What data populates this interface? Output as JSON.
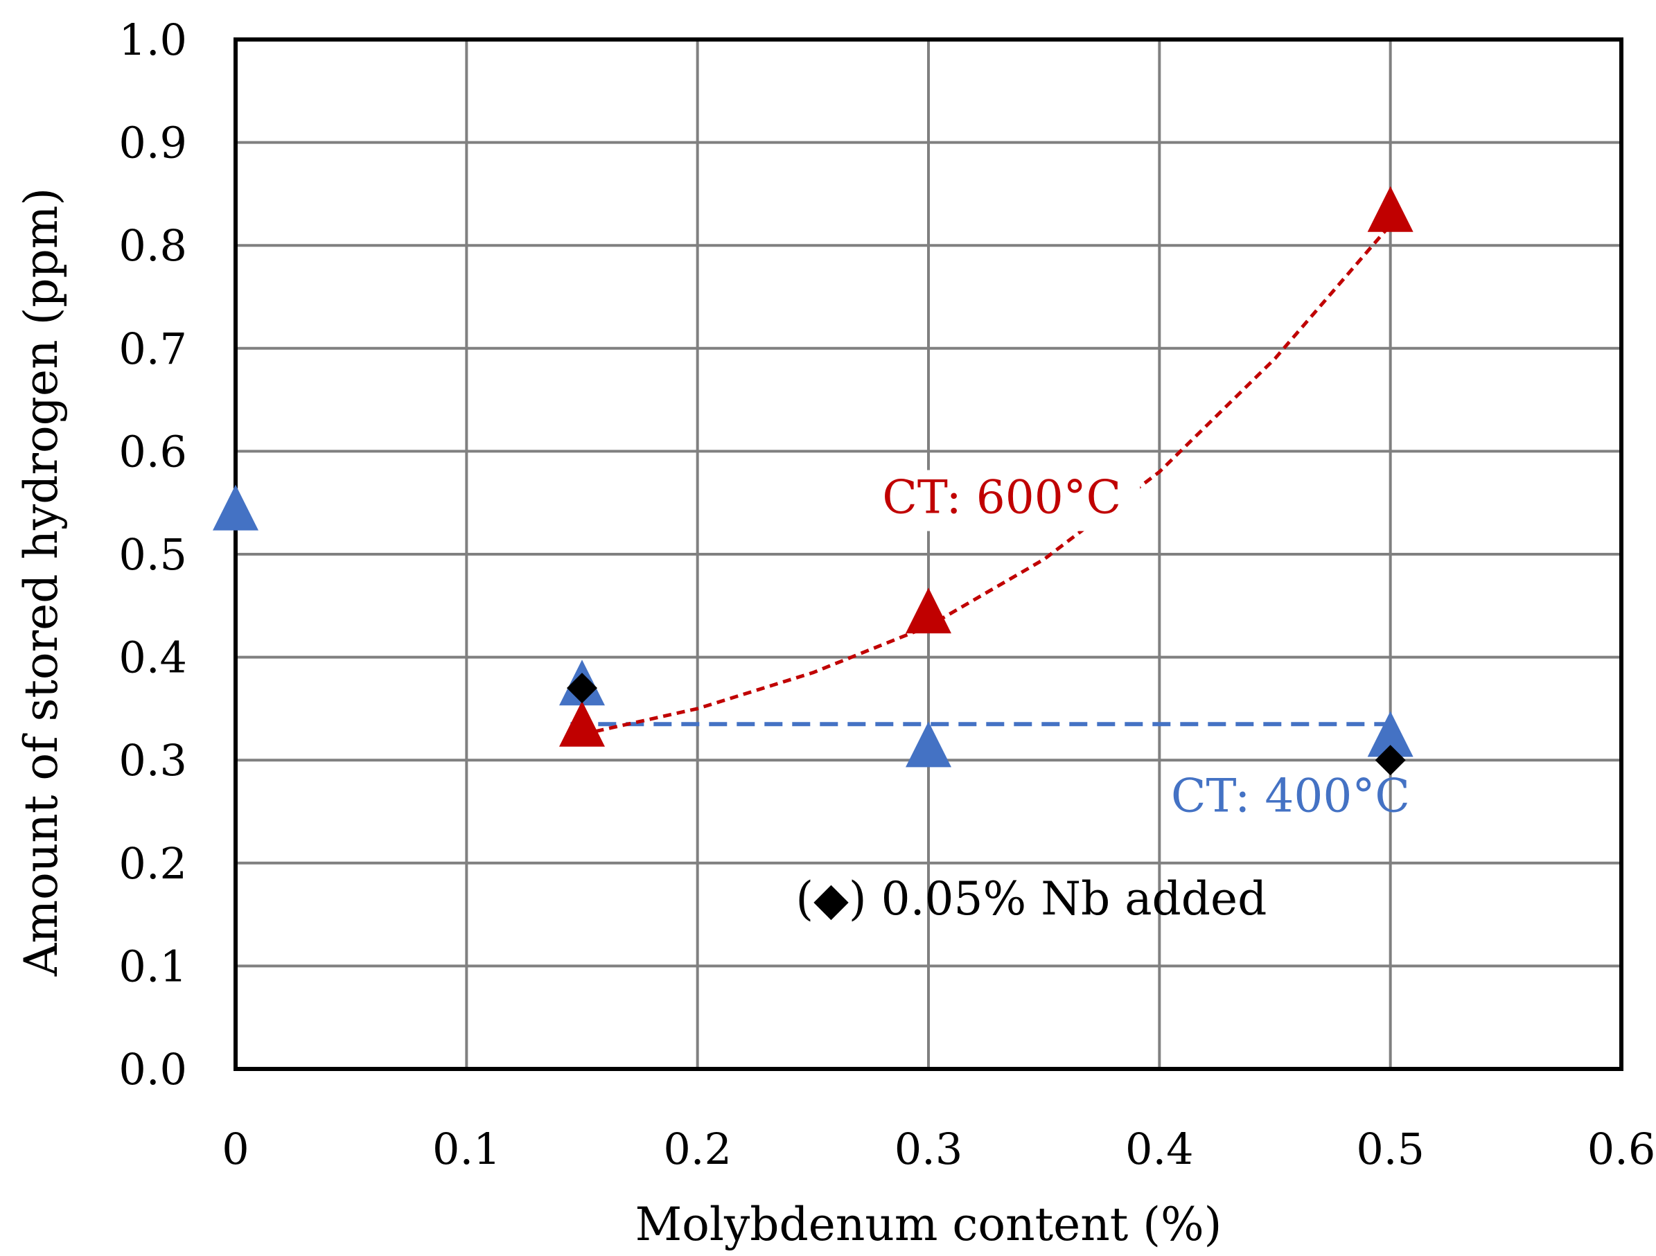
{
  "chart_data": {
    "type": "scatter",
    "title": "",
    "xlabel": "Molybdenum content (%)",
    "ylabel": "Amount of stored hydrogen (ppm)",
    "xlim": [
      0,
      0.6
    ],
    "ylim": [
      0,
      1.0
    ],
    "x_ticks": [
      "0",
      "0.1",
      "0.2",
      "0.3",
      "0.4",
      "0.5",
      "0.6"
    ],
    "y_ticks": [
      "0.0",
      "0.1",
      "0.2",
      "0.3",
      "0.4",
      "0.5",
      "0.6",
      "0.7",
      "0.8",
      "0.9",
      "1.0"
    ],
    "grid": true,
    "series": [
      {
        "name": "CT: 400°C",
        "marker": "triangle",
        "color": "#4472C4",
        "points": [
          {
            "x": 0.0,
            "y": 0.54
          },
          {
            "x": 0.15,
            "y": 0.37
          },
          {
            "x": 0.3,
            "y": 0.31
          },
          {
            "x": 0.5,
            "y": 0.32
          }
        ],
        "trendline": {
          "style": "dashed",
          "kind": "constant",
          "x": [
            0.145,
            0.5
          ],
          "y": [
            0.335,
            0.335
          ]
        }
      },
      {
        "name": "CT: 600°C",
        "marker": "triangle",
        "color": "#C00000",
        "points": [
          {
            "x": 0.15,
            "y": 0.33
          },
          {
            "x": 0.3,
            "y": 0.44
          },
          {
            "x": 0.5,
            "y": 0.83
          }
        ],
        "trendline": {
          "style": "dotted",
          "kind": "smooth",
          "x": [
            0.15,
            0.2,
            0.25,
            0.3,
            0.35,
            0.4,
            0.45,
            0.5
          ],
          "y": [
            0.325,
            0.35,
            0.385,
            0.43,
            0.495,
            0.58,
            0.69,
            0.82
          ]
        }
      },
      {
        "name": "0.05% Nb added",
        "marker": "diamond",
        "color": "#000000",
        "points": [
          {
            "x": 0.15,
            "y": 0.37
          },
          {
            "x": 0.5,
            "y": 0.3
          }
        ]
      }
    ],
    "annotations": {
      "ct600": {
        "text": "CT: 600°C",
        "x": 0.28,
        "y": 0.54,
        "color": "#C00000"
      },
      "ct400": {
        "text": "CT: 400°C",
        "x": 0.405,
        "y": 0.25,
        "color": "#4472C4"
      },
      "nb_note": {
        "text": "0.05% Nb added",
        "symbol": "◆",
        "x": 0.2425,
        "y": 0.15,
        "color": "#000000"
      }
    }
  }
}
